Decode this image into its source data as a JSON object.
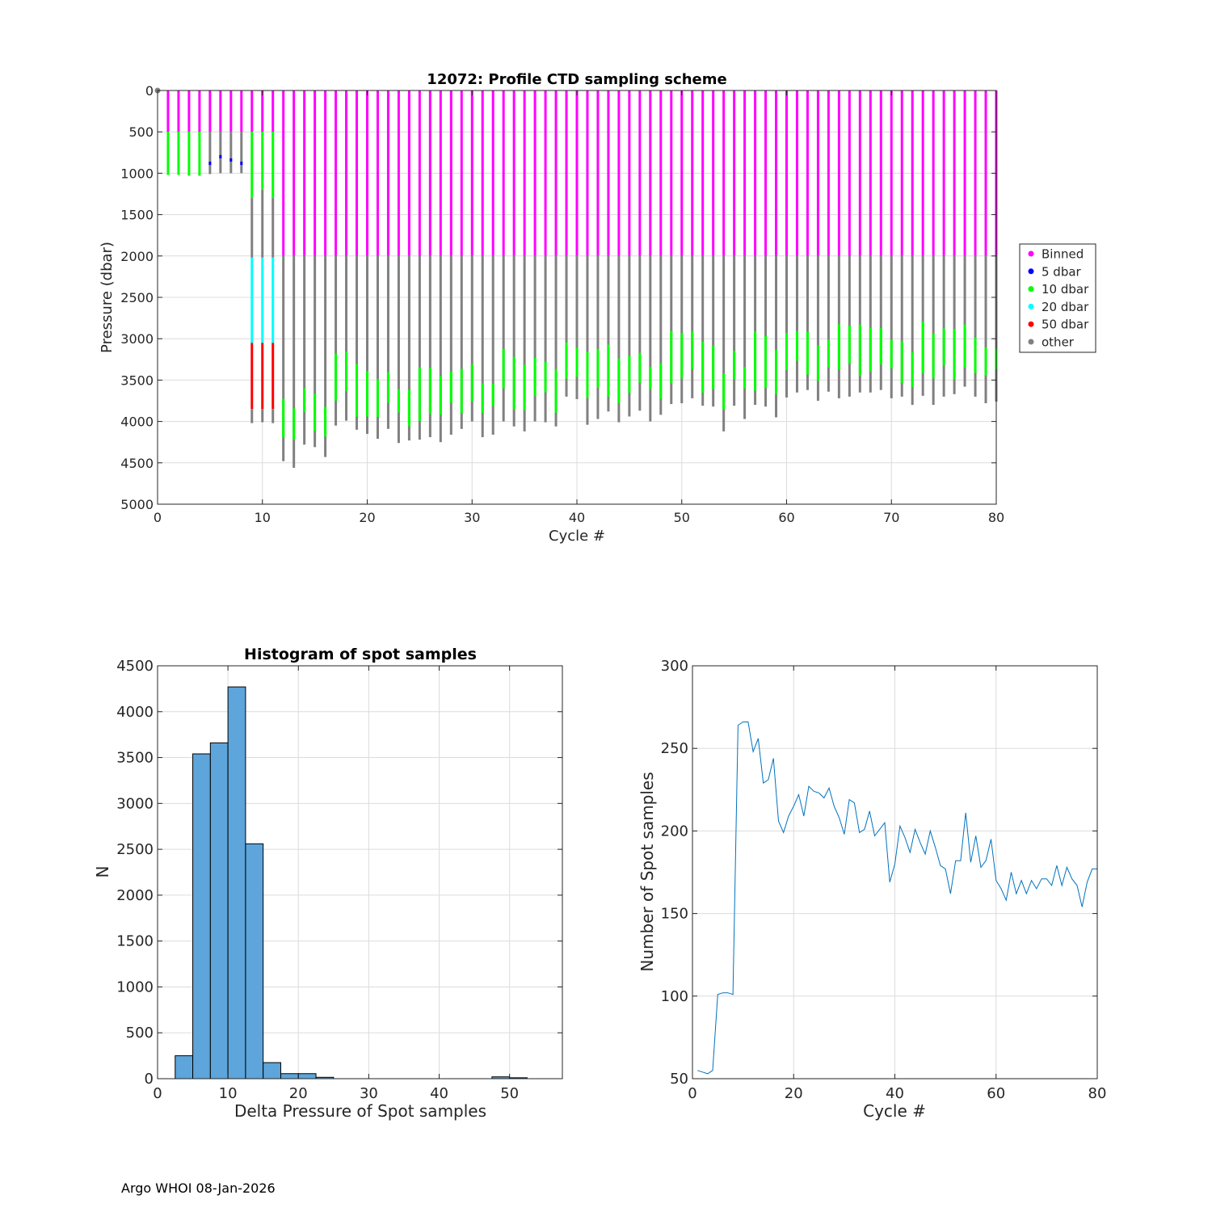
{
  "footer": "Argo WHOI 08-Jan-2026",
  "chart_data": [
    {
      "type": "scatter",
      "title": "12072: Profile CTD sampling scheme",
      "xlabel": "Cycle #",
      "ylabel": "Pressure (dbar)",
      "xlim": [
        0,
        80
      ],
      "ylim": [
        0,
        5000
      ],
      "y_reversed": true,
      "xticks": [
        "0",
        "10",
        "20",
        "30",
        "40",
        "50",
        "60",
        "70",
        "80"
      ],
      "yticks": [
        "0",
        "500",
        "1000",
        "1500",
        "2000",
        "2500",
        "3000",
        "3500",
        "4000",
        "4500",
        "5000"
      ],
      "grid": true,
      "legend_position": "right",
      "series": [
        {
          "name": "Binned",
          "color": "#ff00ff"
        },
        {
          "name": "5 dbar",
          "color": "#0000ff"
        },
        {
          "name": "10 dbar",
          "color": "#00ff00"
        },
        {
          "name": "20 dbar",
          "color": "#00ffff"
        },
        {
          "name": "50 dbar",
          "color": "#ff0000"
        },
        {
          "name": "other",
          "color": "#808080"
        }
      ],
      "bin_depth_early": 500,
      "bin_depth_late": 2000,
      "profile_max_pressure": [
        [
          1,
          1020
        ],
        [
          2,
          1020
        ],
        [
          3,
          1030
        ],
        [
          4,
          1030
        ],
        [
          5,
          1010
        ],
        [
          6,
          1000
        ],
        [
          7,
          1000
        ],
        [
          8,
          1000
        ],
        [
          9,
          4020
        ],
        [
          10,
          4010
        ],
        [
          11,
          4020
        ],
        [
          12,
          4480
        ],
        [
          13,
          4560
        ],
        [
          14,
          4280
        ],
        [
          15,
          4310
        ],
        [
          16,
          4430
        ],
        [
          17,
          4050
        ],
        [
          18,
          3990
        ],
        [
          19,
          4100
        ],
        [
          20,
          4150
        ],
        [
          21,
          4210
        ],
        [
          22,
          4090
        ],
        [
          23,
          4260
        ],
        [
          24,
          4230
        ],
        [
          25,
          4220
        ],
        [
          26,
          4190
        ],
        [
          27,
          4250
        ],
        [
          28,
          4160
        ],
        [
          29,
          4090
        ],
        [
          30,
          4000
        ],
        [
          31,
          4190
        ],
        [
          32,
          4160
        ],
        [
          33,
          4000
        ],
        [
          34,
          4060
        ],
        [
          35,
          4120
        ],
        [
          36,
          4000
        ],
        [
          37,
          4010
        ],
        [
          38,
          4060
        ],
        [
          39,
          3700
        ],
        [
          40,
          3730
        ],
        [
          41,
          4040
        ],
        [
          42,
          3970
        ],
        [
          43,
          3880
        ],
        [
          44,
          4010
        ],
        [
          45,
          3940
        ],
        [
          46,
          3870
        ],
        [
          47,
          4000
        ],
        [
          48,
          3920
        ],
        [
          49,
          3790
        ],
        [
          50,
          3780
        ],
        [
          51,
          3720
        ],
        [
          52,
          3810
        ],
        [
          53,
          3820
        ],
        [
          54,
          4120
        ],
        [
          55,
          3810
        ],
        [
          56,
          3970
        ],
        [
          57,
          3800
        ],
        [
          58,
          3820
        ],
        [
          59,
          3950
        ],
        [
          60,
          3710
        ],
        [
          61,
          3650
        ],
        [
          62,
          3620
        ],
        [
          63,
          3750
        ],
        [
          64,
          3640
        ],
        [
          65,
          3720
        ],
        [
          66,
          3700
        ],
        [
          67,
          3650
        ],
        [
          68,
          3650
        ],
        [
          69,
          3620
        ],
        [
          70,
          3720
        ],
        [
          71,
          3700
        ],
        [
          72,
          3800
        ],
        [
          73,
          3690
        ],
        [
          74,
          3800
        ],
        [
          75,
          3700
        ],
        [
          76,
          3670
        ],
        [
          77,
          3580
        ],
        [
          78,
          3700
        ],
        [
          79,
          3780
        ],
        [
          80,
          3760
        ]
      ]
    },
    {
      "type": "bar",
      "title": "Histogram of spot samples",
      "xlabel": "Delta Pressure of Spot samples",
      "ylabel": "N",
      "xlim": [
        0,
        57.5
      ],
      "ylim": [
        0,
        4500
      ],
      "xticks": [
        "0",
        "10",
        "20",
        "30",
        "40",
        "50"
      ],
      "yticks": [
        "0",
        "500",
        "1000",
        "1500",
        "2000",
        "2500",
        "3000",
        "3500",
        "4000",
        "4500"
      ],
      "grid": true,
      "bin_width": 2.5,
      "bins": [
        {
          "start": 2.5,
          "count": 250
        },
        {
          "start": 5,
          "count": 3540
        },
        {
          "start": 7.5,
          "count": 3660
        },
        {
          "start": 10,
          "count": 4270
        },
        {
          "start": 12.5,
          "count": 2560
        },
        {
          "start": 15,
          "count": 175
        },
        {
          "start": 17.5,
          "count": 55
        },
        {
          "start": 20,
          "count": 55
        },
        {
          "start": 22.5,
          "count": 15
        },
        {
          "start": 47.5,
          "count": 20
        },
        {
          "start": 50,
          "count": 10
        }
      ],
      "bar_color": "#5da5da"
    },
    {
      "type": "line",
      "title": "",
      "xlabel": "Cycle #",
      "ylabel": "Number of Spot samples",
      "xlim": [
        0,
        80
      ],
      "ylim": [
        50,
        300
      ],
      "xticks": [
        "0",
        "20",
        "40",
        "60",
        "80"
      ],
      "yticks": [
        "50",
        "100",
        "150",
        "200",
        "250",
        "300"
      ],
      "grid": true,
      "line_color": "#0072bd",
      "x": [
        1,
        2,
        3,
        4,
        5,
        6,
        7,
        8,
        9,
        10,
        11,
        12,
        13,
        14,
        15,
        16,
        17,
        18,
        19,
        20,
        21,
        22,
        23,
        24,
        25,
        26,
        27,
        28,
        29,
        30,
        31,
        32,
        33,
        34,
        35,
        36,
        37,
        38,
        39,
        40,
        41,
        42,
        43,
        44,
        45,
        46,
        47,
        48,
        49,
        50,
        51,
        52,
        53,
        54,
        55,
        56,
        57,
        58,
        59,
        60,
        61,
        62,
        63,
        64,
        65,
        66,
        67,
        68,
        69,
        70,
        71,
        72,
        73,
        74,
        75,
        76,
        77,
        78,
        79,
        80
      ],
      "y": [
        55,
        54,
        53,
        55,
        101,
        102,
        102,
        101,
        264,
        266,
        266,
        248,
        256,
        229,
        231,
        244,
        206,
        199,
        209,
        215,
        222,
        209,
        227,
        224,
        223,
        220,
        226,
        215,
        208,
        198,
        219,
        217,
        199,
        201,
        212,
        197,
        201,
        205,
        169,
        180,
        203,
        196,
        187,
        201,
        193,
        186,
        200,
        190,
        179,
        177,
        162,
        182,
        182,
        211,
        181,
        197,
        178,
        182,
        195,
        170,
        165,
        158,
        175,
        162,
        170,
        162,
        170,
        165,
        171,
        171,
        167,
        179,
        167,
        178,
        171,
        167,
        154,
        169,
        177,
        177
      ]
    }
  ]
}
